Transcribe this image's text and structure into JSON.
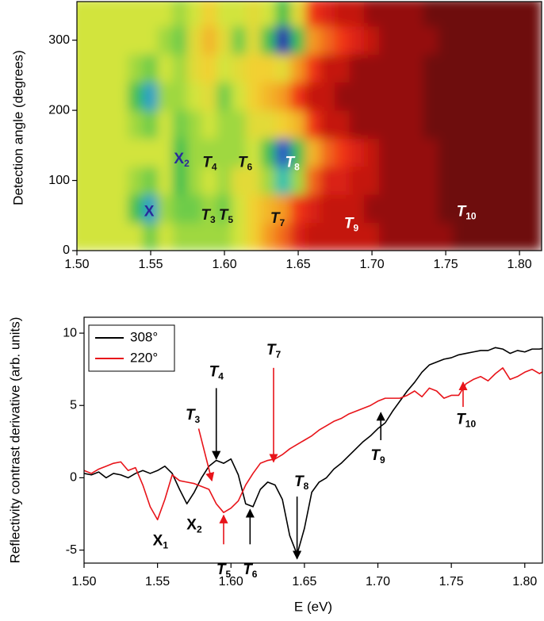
{
  "chart_data": [
    {
      "type": "heatmap",
      "ylabel": "Detection angle (degrees)",
      "x": [
        1.5,
        1.51,
        1.52,
        1.53,
        1.54,
        1.55,
        1.56,
        1.57,
        1.58,
        1.59,
        1.6,
        1.61,
        1.62,
        1.63,
        1.64,
        1.65,
        1.66,
        1.67,
        1.68,
        1.69,
        1.7,
        1.71,
        1.72,
        1.73,
        1.74,
        1.75,
        1.76,
        1.77,
        1.78,
        1.79,
        1.8,
        1.81
      ],
      "y": [
        20,
        60,
        100,
        140,
        180,
        220,
        260,
        300,
        340
      ],
      "values": [
        [
          4.5,
          4.5,
          4.5,
          4.5,
          4.5,
          3.5,
          4.5,
          4,
          4,
          4,
          4,
          4.5,
          5.5,
          6.5,
          7,
          8,
          8.5,
          8.5,
          8.5,
          8.5,
          8.5,
          9,
          9,
          9,
          9,
          9,
          9.5,
          9.5,
          9.5,
          9.5,
          9.5,
          9.5
        ],
        [
          4.5,
          4.5,
          4.5,
          4.5,
          3,
          1.5,
          4,
          3.5,
          3.5,
          4,
          3.5,
          4.5,
          5.5,
          6,
          6.5,
          7.5,
          8,
          8.5,
          8.5,
          8.5,
          9,
          9,
          9,
          9,
          9,
          9.5,
          9.5,
          9.5,
          9.5,
          9.5,
          9.5,
          9.5
        ],
        [
          4.5,
          4.5,
          4.5,
          4.5,
          4,
          3.5,
          4.5,
          3,
          4,
          4.5,
          4,
          5,
          5,
          4,
          2,
          4,
          7,
          8,
          8,
          8.5,
          8.5,
          9,
          9,
          9,
          9,
          9.5,
          9.5,
          9.5,
          9.5,
          9.5,
          9.5,
          9.5
        ],
        [
          4.5,
          4.5,
          4.5,
          4.5,
          4.5,
          4.5,
          4.5,
          3,
          4,
          4,
          4,
          4,
          4.5,
          3,
          0.5,
          3,
          6,
          7,
          7.5,
          8,
          8.5,
          9,
          9,
          9,
          9,
          9.5,
          9.5,
          9.5,
          9.5,
          9.5,
          9.5,
          9.5
        ],
        [
          4.5,
          4.5,
          4.5,
          4.5,
          4,
          3.5,
          4.5,
          3.5,
          4,
          4.5,
          4,
          4,
          5,
          5,
          5.5,
          6,
          7.5,
          8.5,
          8.5,
          9,
          9,
          9,
          9,
          9,
          9.5,
          9.5,
          9.5,
          9.5,
          9.5,
          9.5,
          9.5,
          9.5
        ],
        [
          4.5,
          4.5,
          4.5,
          4.5,
          3,
          1.5,
          4,
          4,
          4.5,
          5,
          3.5,
          4.5,
          5.5,
          6,
          6.5,
          7.5,
          8.5,
          8.5,
          9,
          9,
          9,
          9,
          9,
          9,
          9.5,
          9.5,
          9.5,
          9.5,
          9.5,
          9.5,
          9.5,
          9.5
        ],
        [
          4.5,
          4.5,
          4.5,
          4.5,
          4,
          3.5,
          4.5,
          4,
          5,
          5.5,
          4.5,
          5,
          5.5,
          5.5,
          5,
          6.5,
          7.5,
          8.5,
          8.5,
          9,
          9,
          9,
          9,
          9,
          9.5,
          9.5,
          9.5,
          9.5,
          9.5,
          9.5,
          9.5,
          9.5
        ],
        [
          4.5,
          4.5,
          4.5,
          4.5,
          4.5,
          4.5,
          4,
          3.5,
          5,
          6,
          5,
          3.5,
          5,
          3,
          0,
          3,
          6.5,
          7,
          7.5,
          8,
          8.5,
          9,
          9,
          9,
          9,
          9.5,
          9.5,
          9.5,
          9.5,
          9.5,
          9.5,
          9.5
        ],
        [
          4.5,
          4.5,
          4.5,
          4.5,
          4.5,
          4.5,
          4.5,
          4,
          4.5,
          5.5,
          4.5,
          4.5,
          5,
          4.5,
          3,
          5,
          7.5,
          8,
          8.5,
          8.5,
          9,
          9,
          9,
          9,
          9.5,
          9.5,
          9.5,
          9.5,
          9.5,
          9.5,
          9.5,
          9.5
        ]
      ],
      "colorscale": [
        {
          "value": 0,
          "color": "#2a1fb0"
        },
        {
          "value": 1,
          "color": "#2a7ee0"
        },
        {
          "value": 2,
          "color": "#22c0b0"
        },
        {
          "value": 3,
          "color": "#3cc050"
        },
        {
          "value": 4,
          "color": "#9fd840"
        },
        {
          "value": 4.5,
          "color": "#d2e43e"
        },
        {
          "value": 5.5,
          "color": "#f2d030"
        },
        {
          "value": 6.5,
          "color": "#f49a22"
        },
        {
          "value": 7.5,
          "color": "#f03414"
        },
        {
          "value": 8.5,
          "color": "#c41410"
        },
        {
          "value": 9,
          "color": "#941010"
        },
        {
          "value": 9.5,
          "color": "#6e0c0c"
        }
      ],
      "xlim": [
        1.5,
        1.815
      ],
      "ylim": [
        0,
        355
      ],
      "xticks": [
        {
          "value": 1.5,
          "label": "1.50"
        },
        {
          "value": 1.55,
          "label": "1.55"
        },
        {
          "value": 1.6,
          "label": "1.60"
        },
        {
          "value": 1.65,
          "label": "1.65"
        },
        {
          "value": 1.7,
          "label": "1.70"
        },
        {
          "value": 1.75,
          "label": "1.75"
        },
        {
          "value": 1.8,
          "label": "1.80"
        }
      ],
      "yticks": [
        0,
        100,
        200,
        300
      ],
      "annotations": [
        {
          "text": "X",
          "x": 1.549,
          "y": 55,
          "color": "#2a2a9a"
        },
        {
          "text": "X",
          "sub": "2",
          "x": 1.571,
          "y": 130,
          "color": "#2a2a9a"
        },
        {
          "text": "T",
          "sub": "3",
          "x": 1.589,
          "y": 50,
          "color": "#111111",
          "italic": true
        },
        {
          "text": "T",
          "sub": "4",
          "x": 1.59,
          "y": 125,
          "color": "#111111",
          "italic": true
        },
        {
          "text": "T",
          "sub": "5",
          "x": 1.601,
          "y": 50,
          "color": "#111111",
          "italic": true
        },
        {
          "text": "T",
          "sub": "6",
          "x": 1.614,
          "y": 125,
          "color": "#111111",
          "italic": true
        },
        {
          "text": "T",
          "sub": "7",
          "x": 1.636,
          "y": 45,
          "color": "#111111",
          "italic": true
        },
        {
          "text": "T",
          "sub": "8",
          "x": 1.646,
          "y": 125,
          "color": "#ffffff",
          "italic": true
        },
        {
          "text": "T",
          "sub": "9",
          "x": 1.686,
          "y": 38,
          "color": "#ffffff",
          "italic": true
        },
        {
          "text": "T",
          "sub": "10",
          "x": 1.764,
          "y": 55,
          "color": "#ffffff",
          "italic": true
        }
      ]
    },
    {
      "type": "line",
      "xlabel": "E (eV)",
      "ylabel": "Reflectivity contrast derivative (arb. units)",
      "x": [
        1.5,
        1.505,
        1.51,
        1.515,
        1.52,
        1.525,
        1.53,
        1.535,
        1.54,
        1.545,
        1.55,
        1.555,
        1.56,
        1.565,
        1.57,
        1.575,
        1.58,
        1.585,
        1.59,
        1.595,
        1.6,
        1.605,
        1.61,
        1.615,
        1.62,
        1.625,
        1.63,
        1.635,
        1.64,
        1.645,
        1.65,
        1.655,
        1.66,
        1.665,
        1.67,
        1.675,
        1.68,
        1.685,
        1.69,
        1.695,
        1.7,
        1.705,
        1.71,
        1.715,
        1.72,
        1.725,
        1.73,
        1.735,
        1.74,
        1.745,
        1.75,
        1.755,
        1.76,
        1.765,
        1.77,
        1.775,
        1.78,
        1.785,
        1.79,
        1.795,
        1.8,
        1.805,
        1.81,
        1.815
      ],
      "series": [
        {
          "name": "308°",
          "color": "#000000",
          "values": [
            0.3,
            0.2,
            0.4,
            0.0,
            0.3,
            0.2,
            0.0,
            0.3,
            0.5,
            0.3,
            0.5,
            0.8,
            0.3,
            -0.8,
            -1.8,
            -1.0,
            0.0,
            0.8,
            1.2,
            1.0,
            1.3,
            0.2,
            -1.8,
            -2.0,
            -0.8,
            -0.3,
            -0.5,
            -1.5,
            -4.0,
            -5.3,
            -3.5,
            -1.0,
            -0.3,
            0.0,
            0.6,
            1.0,
            1.5,
            2.0,
            2.5,
            2.9,
            3.4,
            3.8,
            4.6,
            5.3,
            6.0,
            6.6,
            7.3,
            7.8,
            8.0,
            8.2,
            8.3,
            8.5,
            8.6,
            8.7,
            8.8,
            8.8,
            9.0,
            8.9,
            8.6,
            8.8,
            8.7,
            8.9,
            8.9,
            9.0
          ]
        },
        {
          "name": "220°",
          "color": "#e8141a",
          "values": [
            0.5,
            0.3,
            0.6,
            0.8,
            1.0,
            1.1,
            0.5,
            0.7,
            -0.5,
            -2.0,
            -2.9,
            -1.5,
            0.2,
            -0.2,
            -0.3,
            -0.4,
            -0.6,
            -0.8,
            -1.8,
            -2.4,
            -2.1,
            -1.6,
            -0.5,
            0.3,
            1.0,
            1.2,
            1.3,
            1.6,
            2.0,
            2.3,
            2.6,
            2.9,
            3.3,
            3.6,
            3.9,
            4.1,
            4.4,
            4.6,
            4.8,
            5.0,
            5.3,
            5.5,
            5.5,
            5.5,
            5.7,
            6.0,
            5.6,
            6.2,
            6.0,
            5.5,
            5.7,
            5.7,
            6.5,
            6.8,
            7.0,
            6.7,
            7.2,
            7.6,
            6.8,
            7.0,
            7.3,
            7.5,
            7.2,
            7.5
          ]
        }
      ],
      "xlim": [
        1.5,
        1.812
      ],
      "ylim": [
        -5.9,
        11.1
      ],
      "xticks": [
        {
          "value": 1.5,
          "label": "1.50"
        },
        {
          "value": 1.55,
          "label": "1.55"
        },
        {
          "value": 1.6,
          "label": "1.60"
        },
        {
          "value": 1.65,
          "label": "1.65"
        },
        {
          "value": 1.7,
          "label": "1.70"
        },
        {
          "value": 1.75,
          "label": "1.75"
        },
        {
          "value": 1.8,
          "label": "1.80"
        }
      ],
      "yticks": [
        -5,
        0,
        5,
        10
      ],
      "legend": "upper left",
      "annotations": [
        {
          "text": "X",
          "sub": "1",
          "x": 1.552,
          "y": -4.4,
          "color": "#000000"
        },
        {
          "text": "X",
          "sub": "2",
          "x": 1.575,
          "y": -3.3,
          "color": "#000000"
        },
        {
          "text": "T",
          "sub": "3",
          "x": 1.574,
          "y": 4.3,
          "color": "#000000",
          "italic": true,
          "arrow_from": [
            1.578,
            3.4
          ],
          "arrow_to": [
            1.587,
            -0.2
          ],
          "arrow_color": "#e8141a"
        },
        {
          "text": "T",
          "sub": "4",
          "x": 1.59,
          "y": 7.3,
          "color": "#000000",
          "italic": true,
          "arrow_from": [
            1.59,
            6.2
          ],
          "arrow_to": [
            1.59,
            1.3
          ],
          "arrow_color": "#000000"
        },
        {
          "text": "T",
          "sub": "5",
          "x": 1.595,
          "y": -6.4,
          "color": "#000000",
          "italic": true,
          "arrow_from": [
            1.595,
            -4.6
          ],
          "arrow_to": [
            1.595,
            -2.6
          ],
          "arrow_color": "#e8141a"
        },
        {
          "text": "T",
          "sub": "6",
          "x": 1.613,
          "y": -6.4,
          "color": "#000000",
          "italic": true,
          "arrow_from": [
            1.613,
            -4.6
          ],
          "arrow_to": [
            1.613,
            -2.2
          ],
          "arrow_color": "#000000"
        },
        {
          "text": "T",
          "sub": "7",
          "x": 1.629,
          "y": 8.8,
          "color": "#000000",
          "italic": true,
          "arrow_from": [
            1.629,
            7.6
          ],
          "arrow_to": [
            1.629,
            1.1
          ],
          "arrow_color": "#e8141a"
        },
        {
          "text": "T",
          "sub": "8",
          "x": 1.648,
          "y": -0.3,
          "color": "#000000",
          "italic": true,
          "arrow_from": [
            1.645,
            -1.3
          ],
          "arrow_to": [
            1.645,
            -5.6
          ],
          "arrow_color": "#000000"
        },
        {
          "text": "T",
          "sub": "9",
          "x": 1.7,
          "y": 1.5,
          "color": "#000000",
          "italic": true,
          "arrow_from": [
            1.702,
            2.6
          ],
          "arrow_to": [
            1.702,
            4.5
          ],
          "arrow_color": "#000000"
        },
        {
          "text": "T",
          "sub": "10",
          "x": 1.76,
          "y": 4.0,
          "color": "#000000",
          "italic": true,
          "arrow_from": [
            1.758,
            4.9
          ],
          "arrow_to": [
            1.758,
            6.6
          ],
          "arrow_color": "#e8141a"
        }
      ]
    }
  ]
}
